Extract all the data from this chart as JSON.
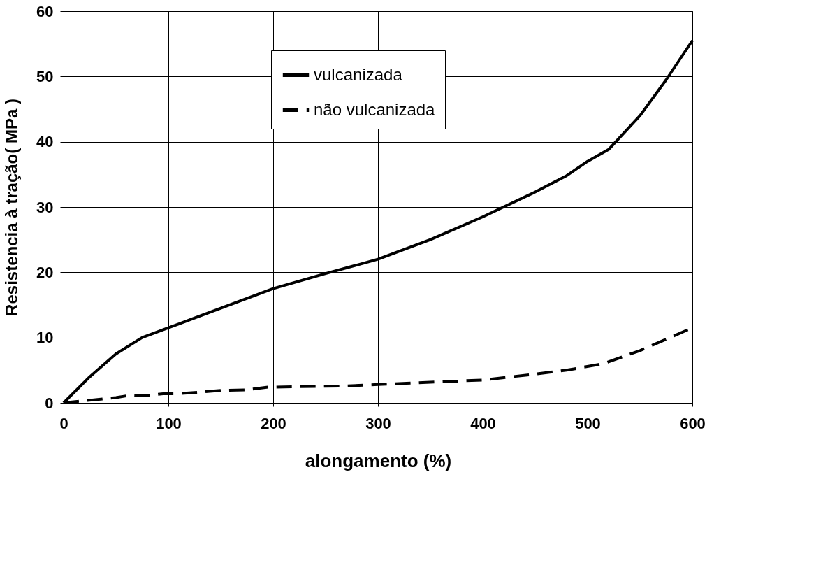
{
  "chart_data": {
    "type": "line",
    "xlabel": "alongamento (%)",
    "ylabel": "Resistencia à tração( MPa )",
    "xlim": [
      0,
      600
    ],
    "xticks": [
      0,
      100,
      200,
      300,
      400,
      500,
      600
    ],
    "ylim": [
      0,
      60
    ],
    "yticks": [
      0,
      10,
      20,
      30,
      40,
      50,
      60
    ],
    "grid": true,
    "legend": "top",
    "marker": "none",
    "series": [
      {
        "name": "vulcanizada",
        "color": "#000000",
        "line_style": "solid",
        "x": [
          0,
          25,
          50,
          75,
          100,
          125,
          150,
          175,
          200,
          250,
          300,
          350,
          400,
          450,
          480,
          500,
          520,
          550,
          575,
          600
        ],
        "values": [
          0,
          4,
          7.5,
          10,
          11.5,
          13,
          14.5,
          16,
          17.5,
          19.8,
          22,
          25,
          28.5,
          32.3,
          34.8,
          37,
          38.8,
          44,
          49.5,
          55.5
        ]
      },
      {
        "name": "não vulcanizada",
        "color": "#000000",
        "line_style": "dashed",
        "x": [
          0,
          50,
          65,
          80,
          95,
          110,
          150,
          175,
          195,
          270,
          300,
          400,
          450,
          480,
          515,
          550,
          600
        ],
        "values": [
          0,
          0.8,
          1.2,
          1.1,
          1.4,
          1.4,
          1.9,
          2,
          2.4,
          2.6,
          2.8,
          3.5,
          4.4,
          5,
          6,
          8,
          11.5
        ]
      }
    ]
  }
}
